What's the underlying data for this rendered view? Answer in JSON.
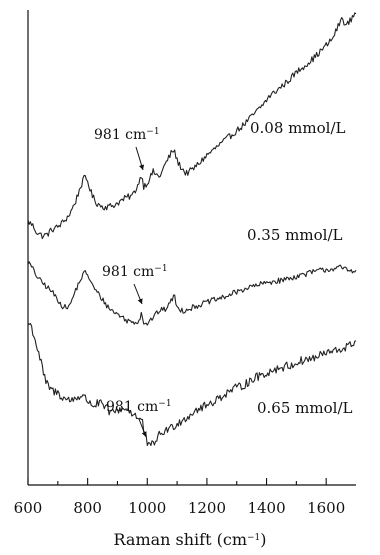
{
  "chart_data": {
    "type": "line",
    "xlabel": "Raman shift (cm",
    "xlabel_sup": "−1",
    "xlabel_end": ")",
    "xlim": [
      600,
      1700
    ],
    "xticks": [
      600,
      800,
      1000,
      1200,
      1400,
      1600
    ],
    "y_axis": "offset stacked, unlabeled",
    "grid": false,
    "series": [
      {
        "name": "0.08 mmol/L",
        "x": [
          600,
          615,
          630,
          650,
          665,
          680,
          700,
          720,
          740,
          760,
          775,
          790,
          800,
          815,
          830,
          850,
          870,
          890,
          910,
          930,
          950,
          965,
          975,
          981,
          988,
          1000,
          1020,
          1040,
          1060,
          1080,
          1090,
          1100,
          1115,
          1130,
          1150,
          1170,
          1200,
          1230,
          1260,
          1290,
          1320,
          1350,
          1380,
          1410,
          1440,
          1470,
          1500,
          1530,
          1560,
          1590,
          1620,
          1640,
          1655,
          1665,
          1680,
          1700
        ],
        "y": [
          0.18,
          0.14,
          0.06,
          0.02,
          0.04,
          0.09,
          0.12,
          0.18,
          0.26,
          0.4,
          0.55,
          0.66,
          0.62,
          0.46,
          0.38,
          0.34,
          0.34,
          0.36,
          0.4,
          0.44,
          0.46,
          0.55,
          0.63,
          0.7,
          0.56,
          0.6,
          0.72,
          0.66,
          0.8,
          0.92,
          0.96,
          0.84,
          0.76,
          0.7,
          0.74,
          0.8,
          0.9,
          0.98,
          1.06,
          1.14,
          1.22,
          1.32,
          1.42,
          1.54,
          1.62,
          1.7,
          1.8,
          1.88,
          1.96,
          2.06,
          2.16,
          2.3,
          2.4,
          2.3,
          2.36,
          2.46
        ]
      },
      {
        "name": "0.35 mmol/L",
        "x": [
          600,
          610,
          625,
          640,
          660,
          680,
          700,
          720,
          740,
          760,
          780,
          790,
          800,
          815,
          830,
          850,
          870,
          890,
          910,
          930,
          950,
          965,
          975,
          981,
          988,
          1000,
          1020,
          1040,
          1060,
          1080,
          1090,
          1100,
          1120,
          1150,
          1180,
          1210,
          1250,
          1290,
          1330,
          1370,
          1410,
          1450,
          1490,
          1530,
          1570,
          1610,
          1650,
          1680,
          1700
        ],
        "y": [
          0.85,
          0.8,
          0.7,
          0.62,
          0.55,
          0.48,
          0.38,
          0.28,
          0.3,
          0.5,
          0.66,
          0.72,
          0.7,
          0.56,
          0.48,
          0.38,
          0.28,
          0.22,
          0.18,
          0.12,
          0.1,
          0.1,
          0.14,
          0.22,
          0.1,
          0.08,
          0.16,
          0.24,
          0.26,
          0.36,
          0.44,
          0.28,
          0.24,
          0.28,
          0.32,
          0.36,
          0.4,
          0.46,
          0.52,
          0.56,
          0.6,
          0.62,
          0.66,
          0.7,
          0.74,
          0.76,
          0.78,
          0.74,
          0.76
        ]
      },
      {
        "name": "0.65 mmol/L",
        "x": [
          600,
          610,
          620,
          640,
          660,
          680,
          700,
          720,
          740,
          760,
          780,
          800,
          820,
          840,
          860,
          880,
          900,
          920,
          940,
          960,
          975,
          981,
          990,
          1000,
          1010,
          1020,
          1040,
          1060,
          1080,
          1100,
          1130,
          1160,
          1200,
          1240,
          1280,
          1320,
          1360,
          1400,
          1440,
          1480,
          1520,
          1560,
          1600,
          1640,
          1680,
          1700
        ],
        "y": [
          1.0,
          0.98,
          0.9,
          0.72,
          0.52,
          0.46,
          0.44,
          0.4,
          0.38,
          0.4,
          0.42,
          0.38,
          0.34,
          0.36,
          0.32,
          0.28,
          0.3,
          0.32,
          0.3,
          0.26,
          0.22,
          0.24,
          0.12,
          0.04,
          0.0,
          0.04,
          0.1,
          0.14,
          0.16,
          0.2,
          0.24,
          0.3,
          0.34,
          0.4,
          0.46,
          0.5,
          0.56,
          0.6,
          0.64,
          0.66,
          0.7,
          0.72,
          0.76,
          0.78,
          0.82,
          0.86
        ]
      }
    ],
    "annotations": [
      {
        "text": "981 cm",
        "sup": "−1",
        "x": 981
      },
      {
        "text": "981 cm",
        "sup": "−1",
        "x": 981
      },
      {
        "text": "981 cm",
        "sup": "−1",
        "x": 981
      }
    ]
  }
}
